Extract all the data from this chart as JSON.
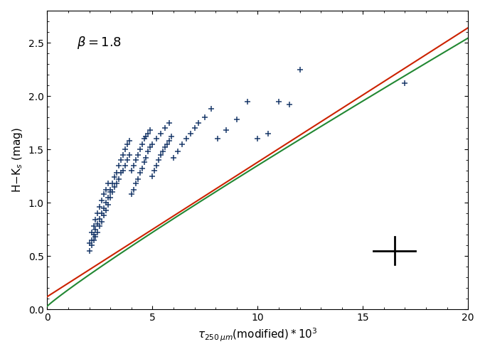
{
  "beta": 1.8,
  "xlim": [
    0,
    20
  ],
  "ylim": [
    0.0,
    2.8
  ],
  "xlabel": "$\\tau_{250\\,\\mu m}(\\mathrm{modified}) \\times 10^3$",
  "ylabel": "H$-$K$_s$ (mag)",
  "annotation": "$\\beta = 1.8$",
  "data_color": "#1b3a6b",
  "red_curve_color": "#cc2200",
  "green_curve_color": "#228833",
  "error_cross_color": "#000000",
  "error_cross_x": 16.5,
  "error_cross_y": 0.55,
  "error_cross_dx": 1.0,
  "error_cross_dy": 0.13,
  "data_points_x": [
    2.0,
    2.1,
    2.2,
    2.3,
    2.4,
    2.5,
    2.6,
    2.7,
    2.8,
    2.9,
    2.0,
    2.1,
    2.2,
    2.3,
    2.4,
    2.5,
    2.6,
    2.7,
    2.8,
    2.9,
    2.1,
    2.2,
    2.3,
    2.4,
    2.5,
    2.6,
    2.7,
    2.8,
    2.9,
    3.0,
    3.0,
    3.1,
    3.2,
    3.3,
    3.4,
    3.5,
    3.6,
    3.7,
    3.8,
    3.9,
    3.0,
    3.1,
    3.2,
    3.3,
    3.4,
    3.5,
    3.6,
    3.7,
    3.8,
    3.9,
    4.0,
    4.1,
    4.2,
    4.3,
    4.4,
    4.5,
    4.6,
    4.7,
    4.8,
    4.9,
    4.0,
    4.1,
    4.2,
    4.3,
    4.4,
    4.5,
    4.6,
    4.7,
    4.8,
    4.9,
    5.0,
    5.1,
    5.2,
    5.3,
    5.4,
    5.5,
    5.6,
    5.7,
    5.8,
    5.9,
    5.0,
    5.2,
    5.4,
    5.6,
    5.8,
    6.0,
    6.2,
    6.4,
    6.6,
    6.8,
    7.0,
    7.2,
    7.5,
    7.8,
    8.1,
    8.5,
    9.0,
    9.5,
    10.0,
    10.5,
    11.0,
    11.5,
    12.0,
    17.0
  ],
  "data_points_y": [
    0.55,
    0.6,
    0.65,
    0.68,
    0.72,
    0.78,
    0.82,
    0.88,
    0.93,
    0.98,
    0.62,
    0.65,
    0.7,
    0.75,
    0.8,
    0.85,
    0.9,
    0.95,
    1.0,
    1.05,
    0.72,
    0.78,
    0.84,
    0.9,
    0.96,
    1.02,
    1.08,
    1.12,
    1.18,
    1.1,
    1.05,
    1.1,
    1.15,
    1.18,
    1.22,
    1.28,
    1.3,
    1.35,
    1.4,
    1.45,
    1.12,
    1.18,
    1.24,
    1.28,
    1.35,
    1.4,
    1.45,
    1.5,
    1.55,
    1.58,
    1.08,
    1.12,
    1.18,
    1.22,
    1.28,
    1.32,
    1.38,
    1.42,
    1.48,
    1.52,
    1.3,
    1.35,
    1.4,
    1.45,
    1.5,
    1.55,
    1.6,
    1.62,
    1.65,
    1.68,
    1.25,
    1.3,
    1.35,
    1.4,
    1.45,
    1.48,
    1.52,
    1.55,
    1.58,
    1.62,
    1.55,
    1.6,
    1.65,
    1.7,
    1.75,
    1.42,
    1.48,
    1.55,
    1.6,
    1.65,
    1.7,
    1.75,
    1.8,
    1.88,
    1.6,
    1.68,
    1.78,
    1.95,
    1.6,
    1.65,
    1.95,
    1.92,
    2.25,
    2.12
  ],
  "red_curve_params": {
    "a": 0.12,
    "b": 0.126,
    "power": 1.0
  },
  "green_curve_params": {
    "a": 0.03,
    "b": 0.155,
    "power": 0.93
  }
}
